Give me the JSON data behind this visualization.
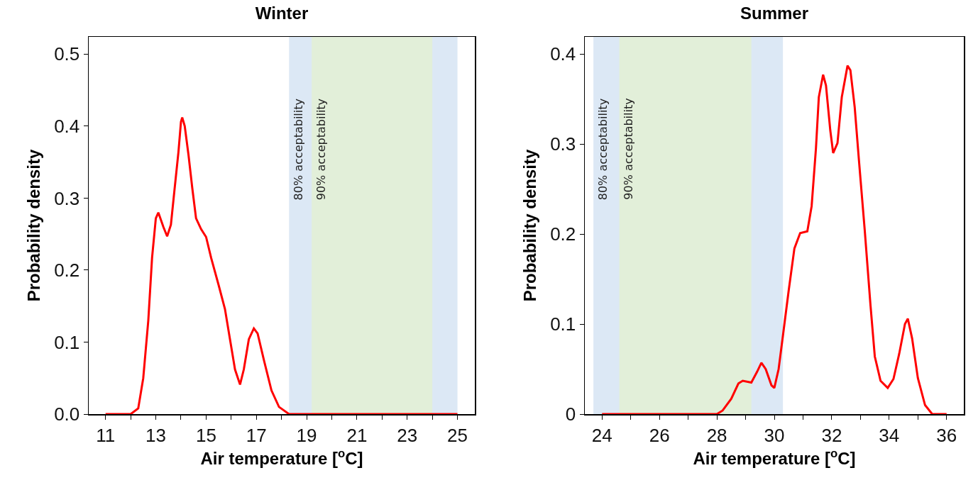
{
  "chart_data": [
    {
      "type": "line",
      "title": "Winter",
      "xlabel": "Air temperature [$^{o}$C]",
      "ylabel": "Probability density",
      "grid": false,
      "marker": "none",
      "line_style": "solid",
      "xlim": [
        10.33,
        25.69
      ],
      "ylim": [
        0,
        0.524
      ],
      "xticks": [
        11,
        {
          "value": 12,
          "label": null
        },
        13,
        {
          "value": 14,
          "label": null
        },
        15,
        {
          "value": 16,
          "label": null
        },
        17,
        {
          "value": 18,
          "label": null
        },
        19,
        {
          "value": 20,
          "label": null
        },
        21,
        {
          "value": 22,
          "label": null
        },
        23,
        {
          "value": 24,
          "label": null
        },
        25
      ],
      "yticks": [
        {
          "value": 0,
          "label": "0.0"
        },
        0.1,
        0.2,
        0.3,
        0.4,
        0.5
      ],
      "bands": [
        {
          "axis": "x",
          "from": 18.3,
          "to": 25,
          "label": "80% acceptability",
          "color": "#dce8f5"
        },
        {
          "axis": "x",
          "from": 19.2,
          "to": 24,
          "label": "90% acceptability",
          "color": "#e2efd9"
        }
      ],
      "series": [
        {
          "color": "#ff0000",
          "x": [
            11,
            12,
            12.3,
            12.5,
            12.7,
            12.85,
            13,
            13.1,
            13.3,
            13.45,
            13.6,
            13.75,
            13.9,
            14,
            14.05,
            14.15,
            14.3,
            14.45,
            14.6,
            14.8,
            15,
            15.2,
            15.5,
            15.75,
            15.95,
            16.15,
            16.35,
            16.5,
            16.7,
            16.9,
            17.05,
            17.3,
            17.6,
            17.9,
            18.3,
            25
          ],
          "values": [
            0,
            0,
            0.008,
            0.05,
            0.13,
            0.217,
            0.272,
            0.28,
            0.26,
            0.247,
            0.263,
            0.314,
            0.364,
            0.406,
            0.412,
            0.4,
            0.36,
            0.314,
            0.272,
            0.257,
            0.246,
            0.217,
            0.179,
            0.146,
            0.104,
            0.062,
            0.041,
            0.062,
            0.104,
            0.119,
            0.112,
            0.075,
            0.033,
            0.01,
            0,
            0
          ]
        }
      ]
    },
    {
      "type": "line",
      "title": "Summer",
      "xlabel": "Air temperature [$^{o}$C]",
      "ylabel": "Probability density",
      "grid": false,
      "marker": "none",
      "line_style": "solid",
      "xlim": [
        23.4,
        36.6
      ],
      "ylim": [
        0,
        0.419
      ],
      "xticks": [
        24,
        {
          "value": 25,
          "label": null
        },
        26,
        {
          "value": 27,
          "label": null
        },
        28,
        {
          "value": 29,
          "label": null
        },
        30,
        {
          "value": 31,
          "label": null
        },
        32,
        {
          "value": 33,
          "label": null
        },
        34,
        {
          "value": 35,
          "label": null
        },
        36
      ],
      "yticks": [
        0,
        0.1,
        0.2,
        0.3,
        0.4
      ],
      "bands": [
        {
          "axis": "x",
          "from": 23.7,
          "to": 30.3,
          "label": "80% acceptability",
          "color": "#dce8f5"
        },
        {
          "axis": "x",
          "from": 24.6,
          "to": 29.2,
          "label": "90% acceptability",
          "color": "#e2efd9"
        }
      ],
      "series": [
        {
          "color": "#ff0000",
          "x": [
            24,
            28,
            28.2,
            28.5,
            28.75,
            28.9,
            29.2,
            29.4,
            29.55,
            29.7,
            29.9,
            30,
            30.15,
            30.3,
            30.5,
            30.7,
            30.9,
            31.15,
            31.3,
            31.45,
            31.55,
            31.7,
            31.8,
            31.95,
            32.05,
            32.2,
            32.35,
            32.55,
            32.65,
            32.8,
            32.95,
            33.15,
            33.35,
            33.5,
            33.7,
            33.95,
            34.15,
            34.35,
            34.55,
            34.65,
            34.8,
            35,
            35.25,
            35.5,
            36
          ],
          "values": [
            0,
            0,
            0.004,
            0.017,
            0.034,
            0.037,
            0.035,
            0.047,
            0.057,
            0.05,
            0.032,
            0.029,
            0.05,
            0.087,
            0.137,
            0.184,
            0.201,
            0.203,
            0.231,
            0.295,
            0.352,
            0.377,
            0.365,
            0.315,
            0.29,
            0.301,
            0.352,
            0.387,
            0.382,
            0.341,
            0.281,
            0.204,
            0.121,
            0.064,
            0.037,
            0.029,
            0.039,
            0.067,
            0.1,
            0.106,
            0.084,
            0.04,
            0.01,
            0,
            0
          ]
        }
      ]
    }
  ]
}
